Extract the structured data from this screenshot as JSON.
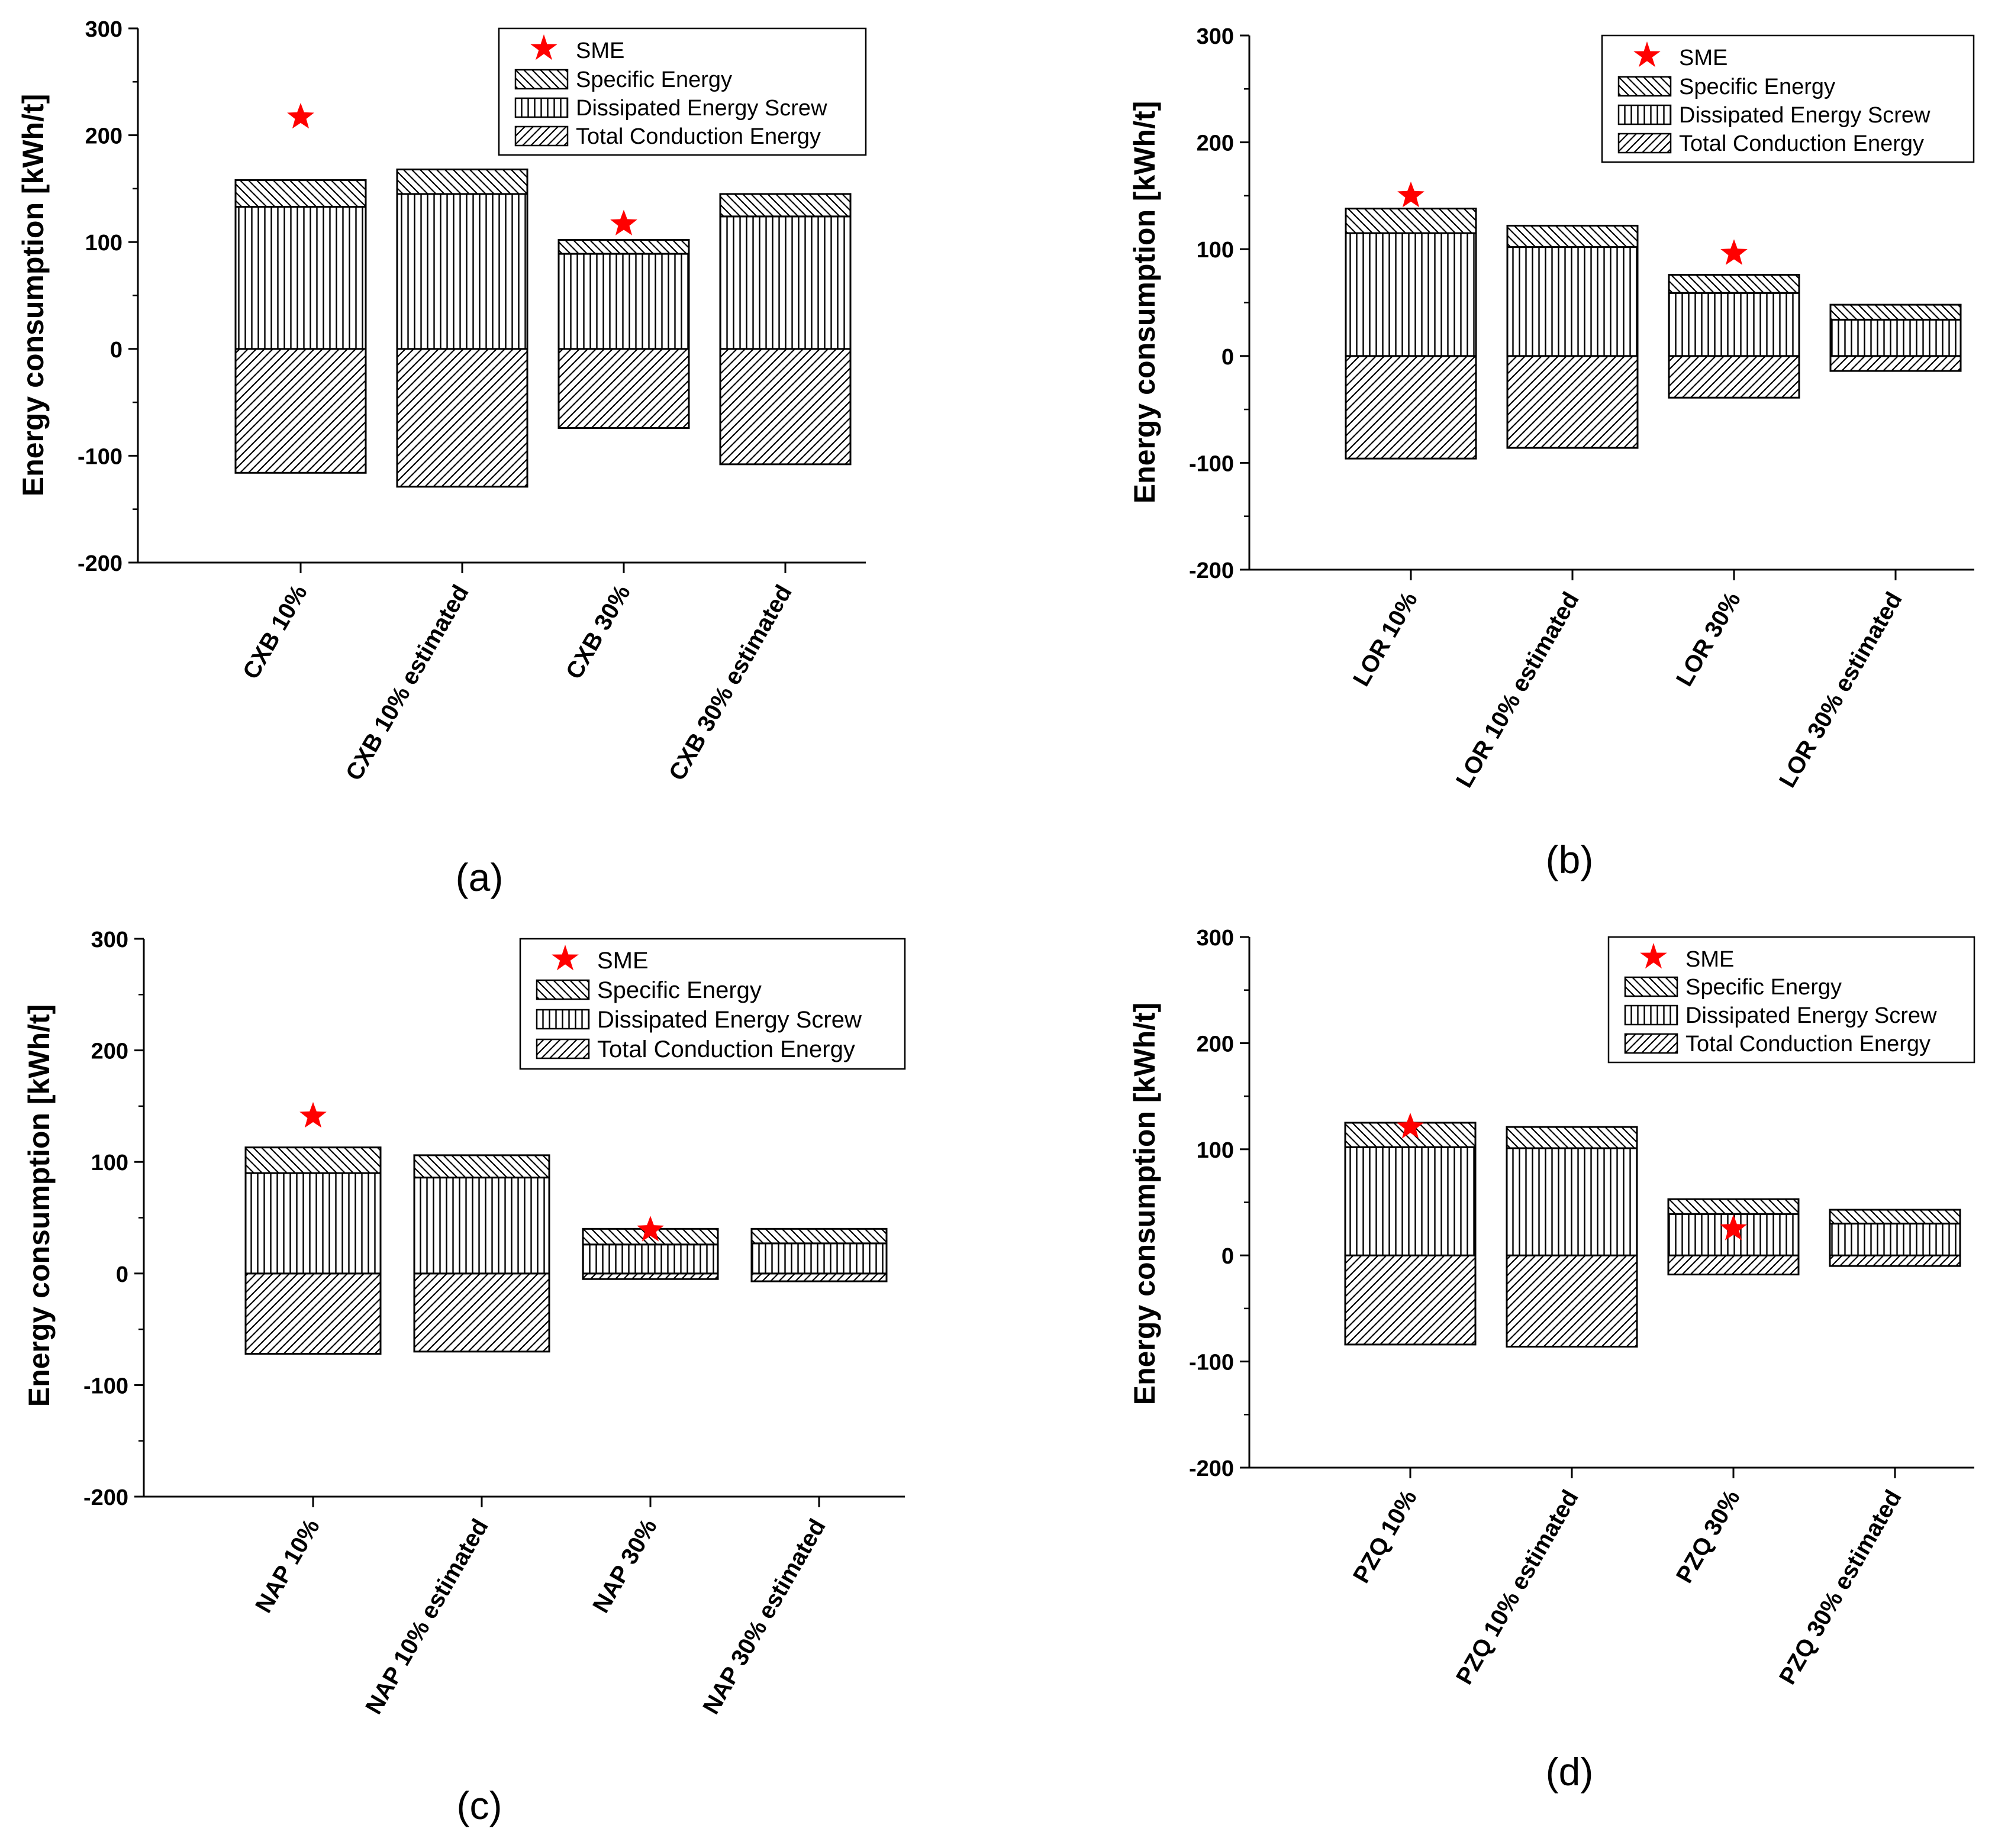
{
  "legend": {
    "sme": "SME",
    "specific": "Specific Energy",
    "dissipated": "Dissipated Energy Screw",
    "conduction": "Total Conduction Energy"
  },
  "colors": {
    "sme_star": "#ff0000",
    "bar_stroke": "#000000",
    "axis": "#000000",
    "background": "#ffffff"
  },
  "chart_data": [
    {
      "panel": "(a)",
      "type": "bar",
      "stacked": true,
      "ylabel": "Energy consumption [kWh/t]",
      "ylim": [
        -200,
        300
      ],
      "yticks": [
        300,
        200,
        100,
        0,
        -100,
        -200
      ],
      "categories": [
        "CXB 10%",
        "CXB 10% estimated",
        "CXB 30%",
        "CXB 30% estimated"
      ],
      "series": [
        {
          "name": "Total Conduction Energy",
          "values": [
            -116,
            -129,
            -74,
            -108
          ]
        },
        {
          "name": "Dissipated Energy Screw",
          "values": [
            133,
            145,
            89,
            124
          ]
        },
        {
          "name": "Specific Energy",
          "values": [
            25,
            23,
            13,
            21
          ]
        }
      ],
      "sme": [
        217,
        null,
        117,
        null
      ]
    },
    {
      "panel": "(b)",
      "type": "bar",
      "stacked": true,
      "ylabel": "Energy consumption [kWh/t]",
      "ylim": [
        -200,
        300
      ],
      "yticks": [
        300,
        200,
        100,
        0,
        -100,
        -200
      ],
      "categories": [
        "LOR 10%",
        "LOR 10% estimated",
        "LOR 30%",
        "LOR 30% estimated"
      ],
      "series": [
        {
          "name": "Total Conduction Energy",
          "values": [
            -96,
            -86,
            -39,
            -14
          ]
        },
        {
          "name": "Dissipated Energy Screw",
          "values": [
            115,
            102,
            59,
            34
          ]
        },
        {
          "name": "Specific Energy",
          "values": [
            23,
            20,
            17,
            14
          ]
        }
      ],
      "sme": [
        150,
        null,
        96,
        null
      ]
    },
    {
      "panel": "(c)",
      "type": "bar",
      "stacked": true,
      "ylabel": "Energy consumption [kWh/t]",
      "ylim": [
        -200,
        300
      ],
      "yticks": [
        300,
        200,
        100,
        0,
        -100,
        -200
      ],
      "categories": [
        "NAP 10%",
        "NAP 10% estimated",
        "NAP 30%",
        "NAP 30% estimated"
      ],
      "series": [
        {
          "name": "Total Conduction Energy",
          "values": [
            -72,
            -70,
            -5,
            -7
          ]
        },
        {
          "name": "Dissipated Energy Screw",
          "values": [
            90,
            86,
            26,
            27
          ]
        },
        {
          "name": "Specific Energy",
          "values": [
            23,
            20,
            14,
            13
          ]
        }
      ],
      "sme": [
        141,
        null,
        39,
        null
      ]
    },
    {
      "panel": "(d)",
      "type": "bar",
      "stacked": true,
      "ylabel": "Energy consumption [kWh/t]",
      "ylim": [
        -200,
        300
      ],
      "yticks": [
        300,
        200,
        100,
        0,
        -100,
        -200
      ],
      "categories": [
        "PZQ 10%",
        "PZQ 10% estimated",
        "PZQ 30%",
        "PZQ 30% estimated"
      ],
      "series": [
        {
          "name": "Total Conduction Energy",
          "values": [
            -84,
            -86,
            -18,
            -10
          ]
        },
        {
          "name": "Dissipated Energy Screw",
          "values": [
            102,
            101,
            39,
            30
          ]
        },
        {
          "name": "Specific Energy",
          "values": [
            23,
            20,
            14,
            13
          ]
        }
      ],
      "sme": [
        121,
        null,
        25,
        null
      ]
    }
  ]
}
